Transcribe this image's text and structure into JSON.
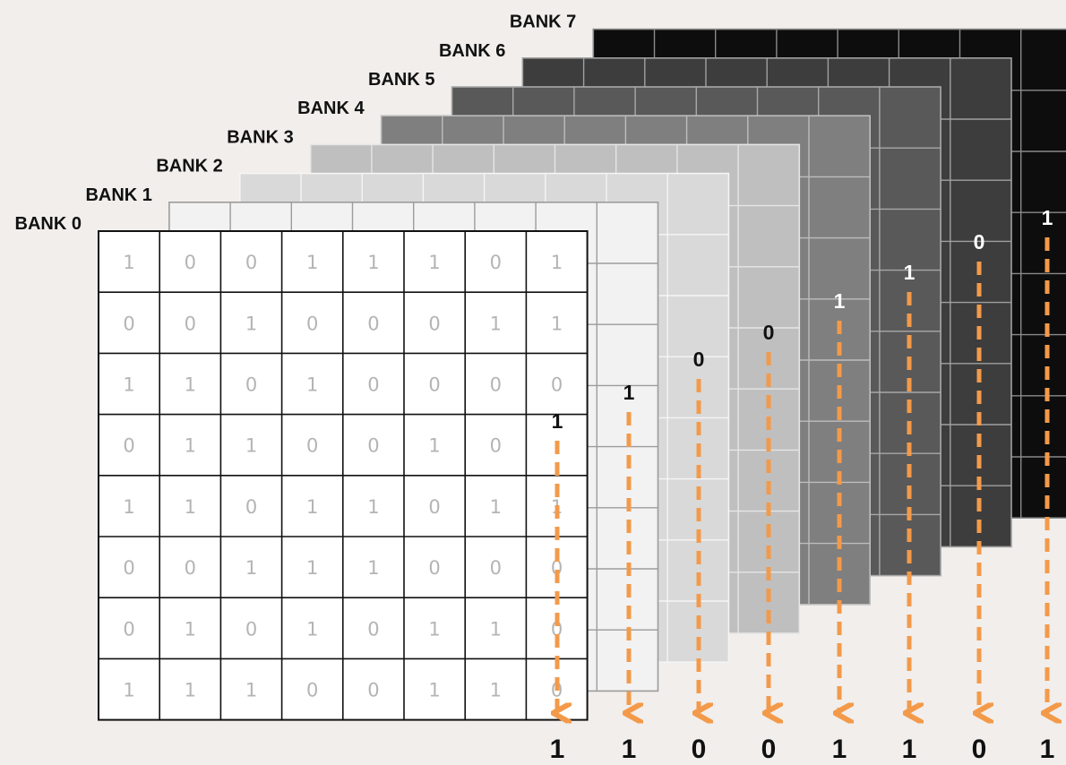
{
  "banks": [
    {
      "label": "BANK 0",
      "fill": "#ffffff",
      "line": "#111111"
    },
    {
      "label": "BANK 1",
      "fill": "#f2f2f2",
      "line": "#9c9c9c"
    },
    {
      "label": "BANK 2",
      "fill": "#d9d9d9",
      "line": "#f5f5f5"
    },
    {
      "label": "BANK 3",
      "fill": "#bfbfbf",
      "line": "#e6e6e6"
    },
    {
      "label": "BANK 4",
      "fill": "#7f7f7f",
      "line": "#bdbdbd"
    },
    {
      "label": "BANK 5",
      "fill": "#595959",
      "line": "#a8a8a8"
    },
    {
      "label": "BANK 6",
      "fill": "#3d3d3d",
      "line": "#a0a0a0"
    },
    {
      "label": "BANK 7",
      "fill": "#0d0d0d",
      "line": "#8a8a8a"
    }
  ],
  "bank0_grid": [
    [
      "1",
      "0",
      "0",
      "1",
      "1",
      "1",
      "0",
      "1"
    ],
    [
      "0",
      "0",
      "1",
      "0",
      "0",
      "0",
      "1",
      "1"
    ],
    [
      "1",
      "1",
      "0",
      "1",
      "0",
      "0",
      "0",
      "0"
    ],
    [
      "0",
      "1",
      "1",
      "0",
      "0",
      "1",
      "0",
      "1"
    ],
    [
      "1",
      "1",
      "0",
      "1",
      "1",
      "0",
      "1",
      "1"
    ],
    [
      "0",
      "0",
      "1",
      "1",
      "1",
      "0",
      "0",
      "0"
    ],
    [
      "0",
      "1",
      "0",
      "1",
      "0",
      "1",
      "1",
      "0"
    ],
    [
      "1",
      "1",
      "1",
      "0",
      "0",
      "1",
      "1",
      "0"
    ]
  ],
  "selected_bits": [
    "1",
    "1",
    "0",
    "0",
    "1",
    "1",
    "0",
    "1"
  ],
  "result_bits": [
    "1",
    "1",
    "0",
    "0",
    "1",
    "1",
    "0",
    "1"
  ],
  "colors": {
    "arrow": "#f39a4a",
    "background": "#f1eeec",
    "digit": "#b4b4b4"
  }
}
